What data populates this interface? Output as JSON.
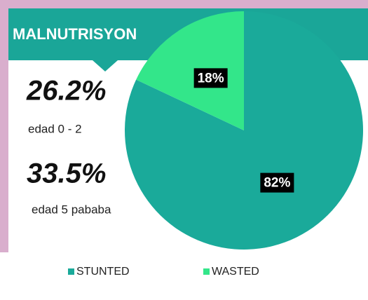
{
  "header": {
    "title": "MALNUTRISYON"
  },
  "stats": [
    {
      "value": "26.2%",
      "label": "edad 0 - 2"
    },
    {
      "value": "33.5%",
      "label": "edad 5 pababa"
    }
  ],
  "chart_data": {
    "type": "pie",
    "categories": [
      "STUNTED",
      "WASTED"
    ],
    "values": [
      82,
      18
    ],
    "value_labels": [
      "82%",
      "18%"
    ],
    "colors": [
      "#1aaa9a",
      "#33e68a"
    ],
    "legend": "bottom"
  }
}
